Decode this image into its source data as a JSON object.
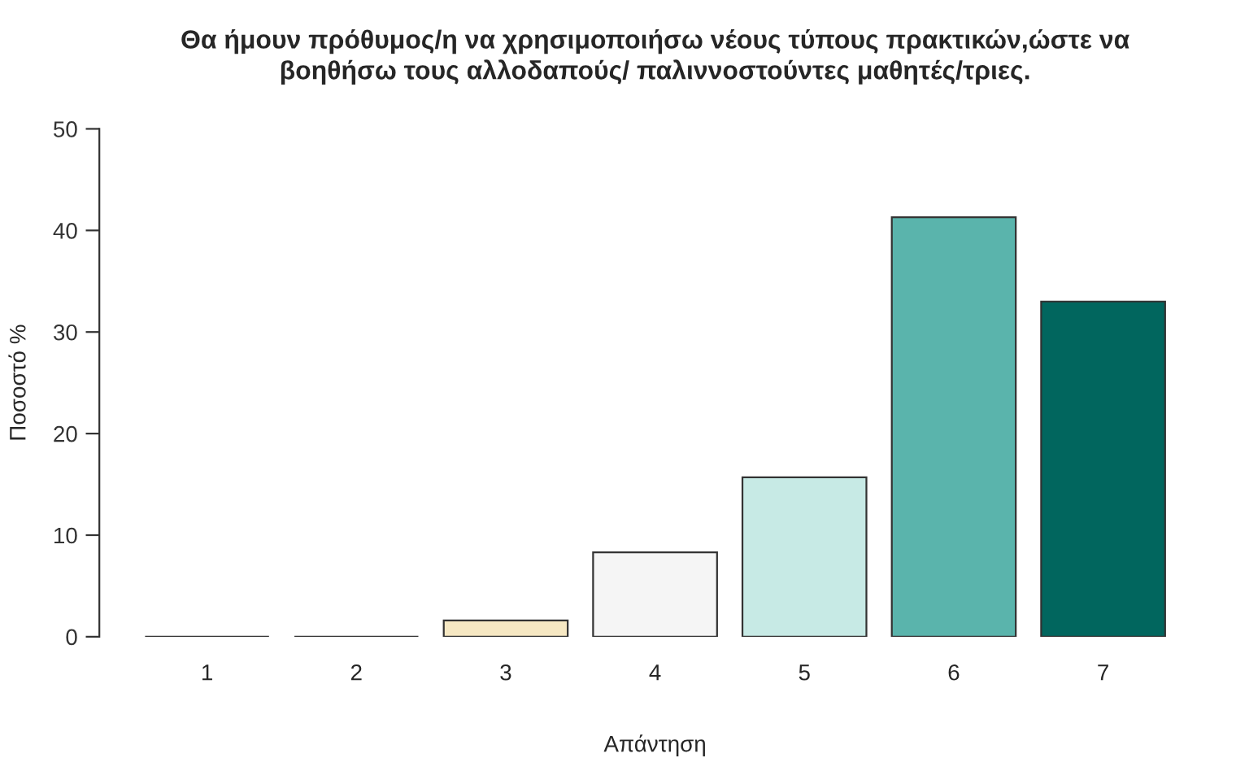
{
  "chart_data": {
    "type": "bar",
    "title": "Θα ήμουν πρόθυμος/η να χρησιμοποιήσω νέους τύπους πρακτικών,ώστε να\nβοηθήσω τους αλλοδαπούς/ παλιννοστούντες μαθητές/τριες.",
    "xlabel": "Απάντηση",
    "ylabel": "Ποσοστό %",
    "categories": [
      "1",
      "2",
      "3",
      "4",
      "5",
      "6",
      "7"
    ],
    "values": [
      0,
      0,
      1.6,
      8.3,
      15.7,
      41.3,
      33.0
    ],
    "colors": [
      "#333333",
      "#333333",
      "#f6e8c3",
      "#f5f5f5",
      "#c7eae5",
      "#5ab4ac",
      "#01665e"
    ],
    "ylim": [
      0,
      50
    ],
    "yticks": [
      0,
      10,
      20,
      30,
      40,
      50
    ],
    "grid": false
  }
}
